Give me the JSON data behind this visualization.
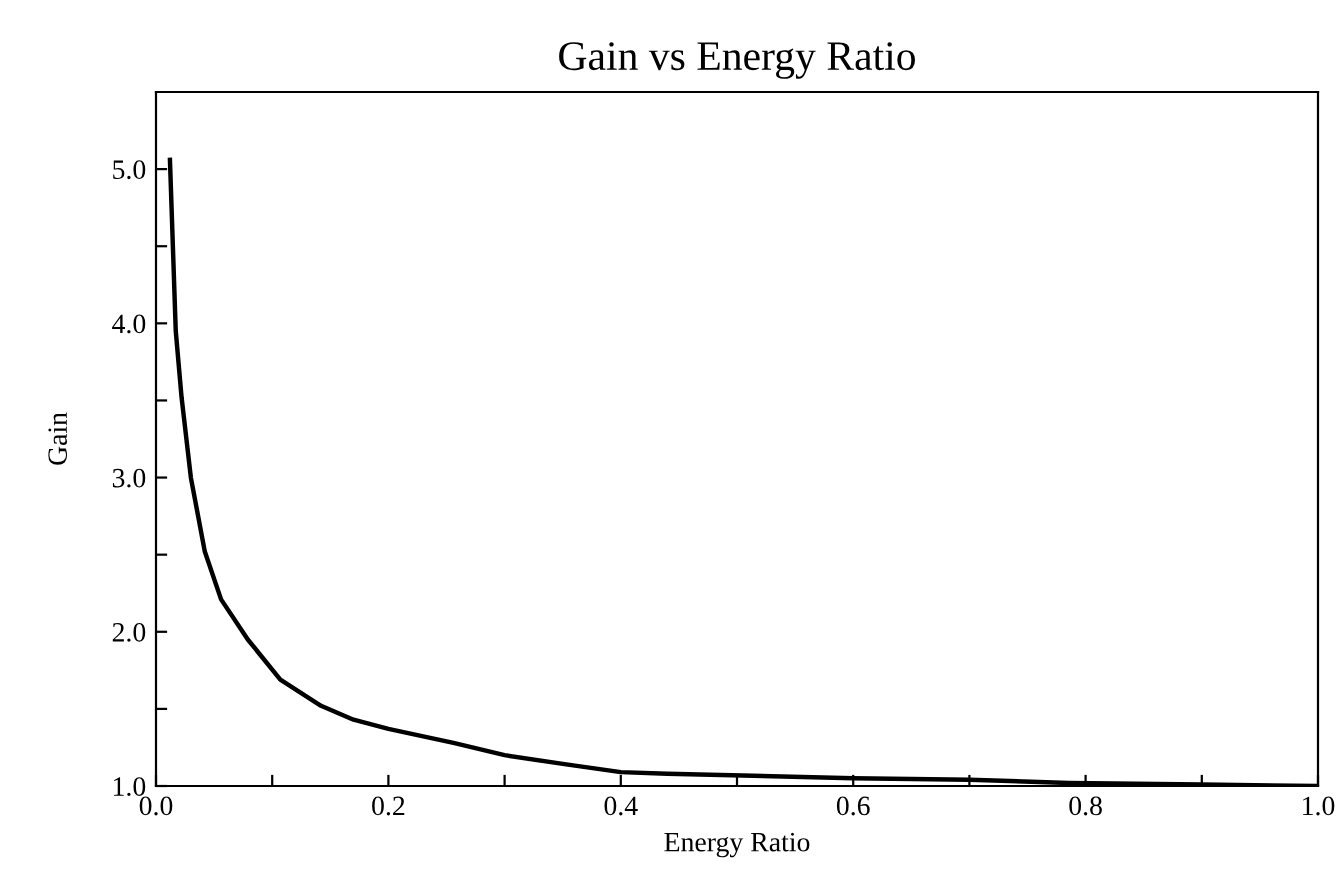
{
  "chart_data": {
    "type": "line",
    "title": "Gain vs Energy Ratio",
    "xlabel": "Energy Ratio",
    "ylabel": "Gain",
    "xlim": [
      0,
      1.0
    ],
    "ylim": [
      1.0,
      5.5
    ],
    "xticks": [
      {
        "value": 0,
        "label": "0.0"
      },
      {
        "value": 0.1,
        "label": null
      },
      {
        "value": 0.2,
        "label": "0.2"
      },
      {
        "value": 0.3,
        "label": null
      },
      {
        "value": 0.4,
        "label": "0.4"
      },
      {
        "value": 0.5,
        "label": null
      },
      {
        "value": 0.6,
        "label": "0.6"
      },
      {
        "value": 0.7,
        "label": null
      },
      {
        "value": 0.8,
        "label": "0.8"
      },
      {
        "value": 0.9,
        "label": null
      },
      {
        "value": 1.0,
        "label": "1.0"
      }
    ],
    "yticks": [
      {
        "value": 1.0,
        "label": "1.0"
      },
      {
        "value": 1.5,
        "label": null
      },
      {
        "value": 2.0,
        "label": "2.0"
      },
      {
        "value": 2.5,
        "label": null
      },
      {
        "value": 3.0,
        "label": "3.0"
      },
      {
        "value": 3.5,
        "label": null
      },
      {
        "value": 4.0,
        "label": "4.0"
      },
      {
        "value": 4.5,
        "label": null
      },
      {
        "value": 5.0,
        "label": "5.0"
      }
    ],
    "grid": false,
    "marker": "none",
    "line_style": "solid",
    "series": [
      {
        "color": "#000000",
        "x": [
          0.012,
          0.017,
          0.022,
          0.03,
          0.042,
          0.056,
          0.079,
          0.107,
          0.142,
          0.17,
          0.2,
          0.256,
          0.3,
          0.353,
          0.4,
          0.44,
          0.6,
          0.7,
          0.786,
          0.9,
          1.0
        ],
        "values": [
          5.06,
          3.95,
          3.52,
          3.0,
          2.52,
          2.21,
          1.95,
          1.69,
          1.52,
          1.43,
          1.37,
          1.28,
          1.2,
          1.14,
          1.09,
          1.08,
          1.05,
          1.04,
          1.02,
          1.01,
          1.0
        ]
      }
    ]
  }
}
